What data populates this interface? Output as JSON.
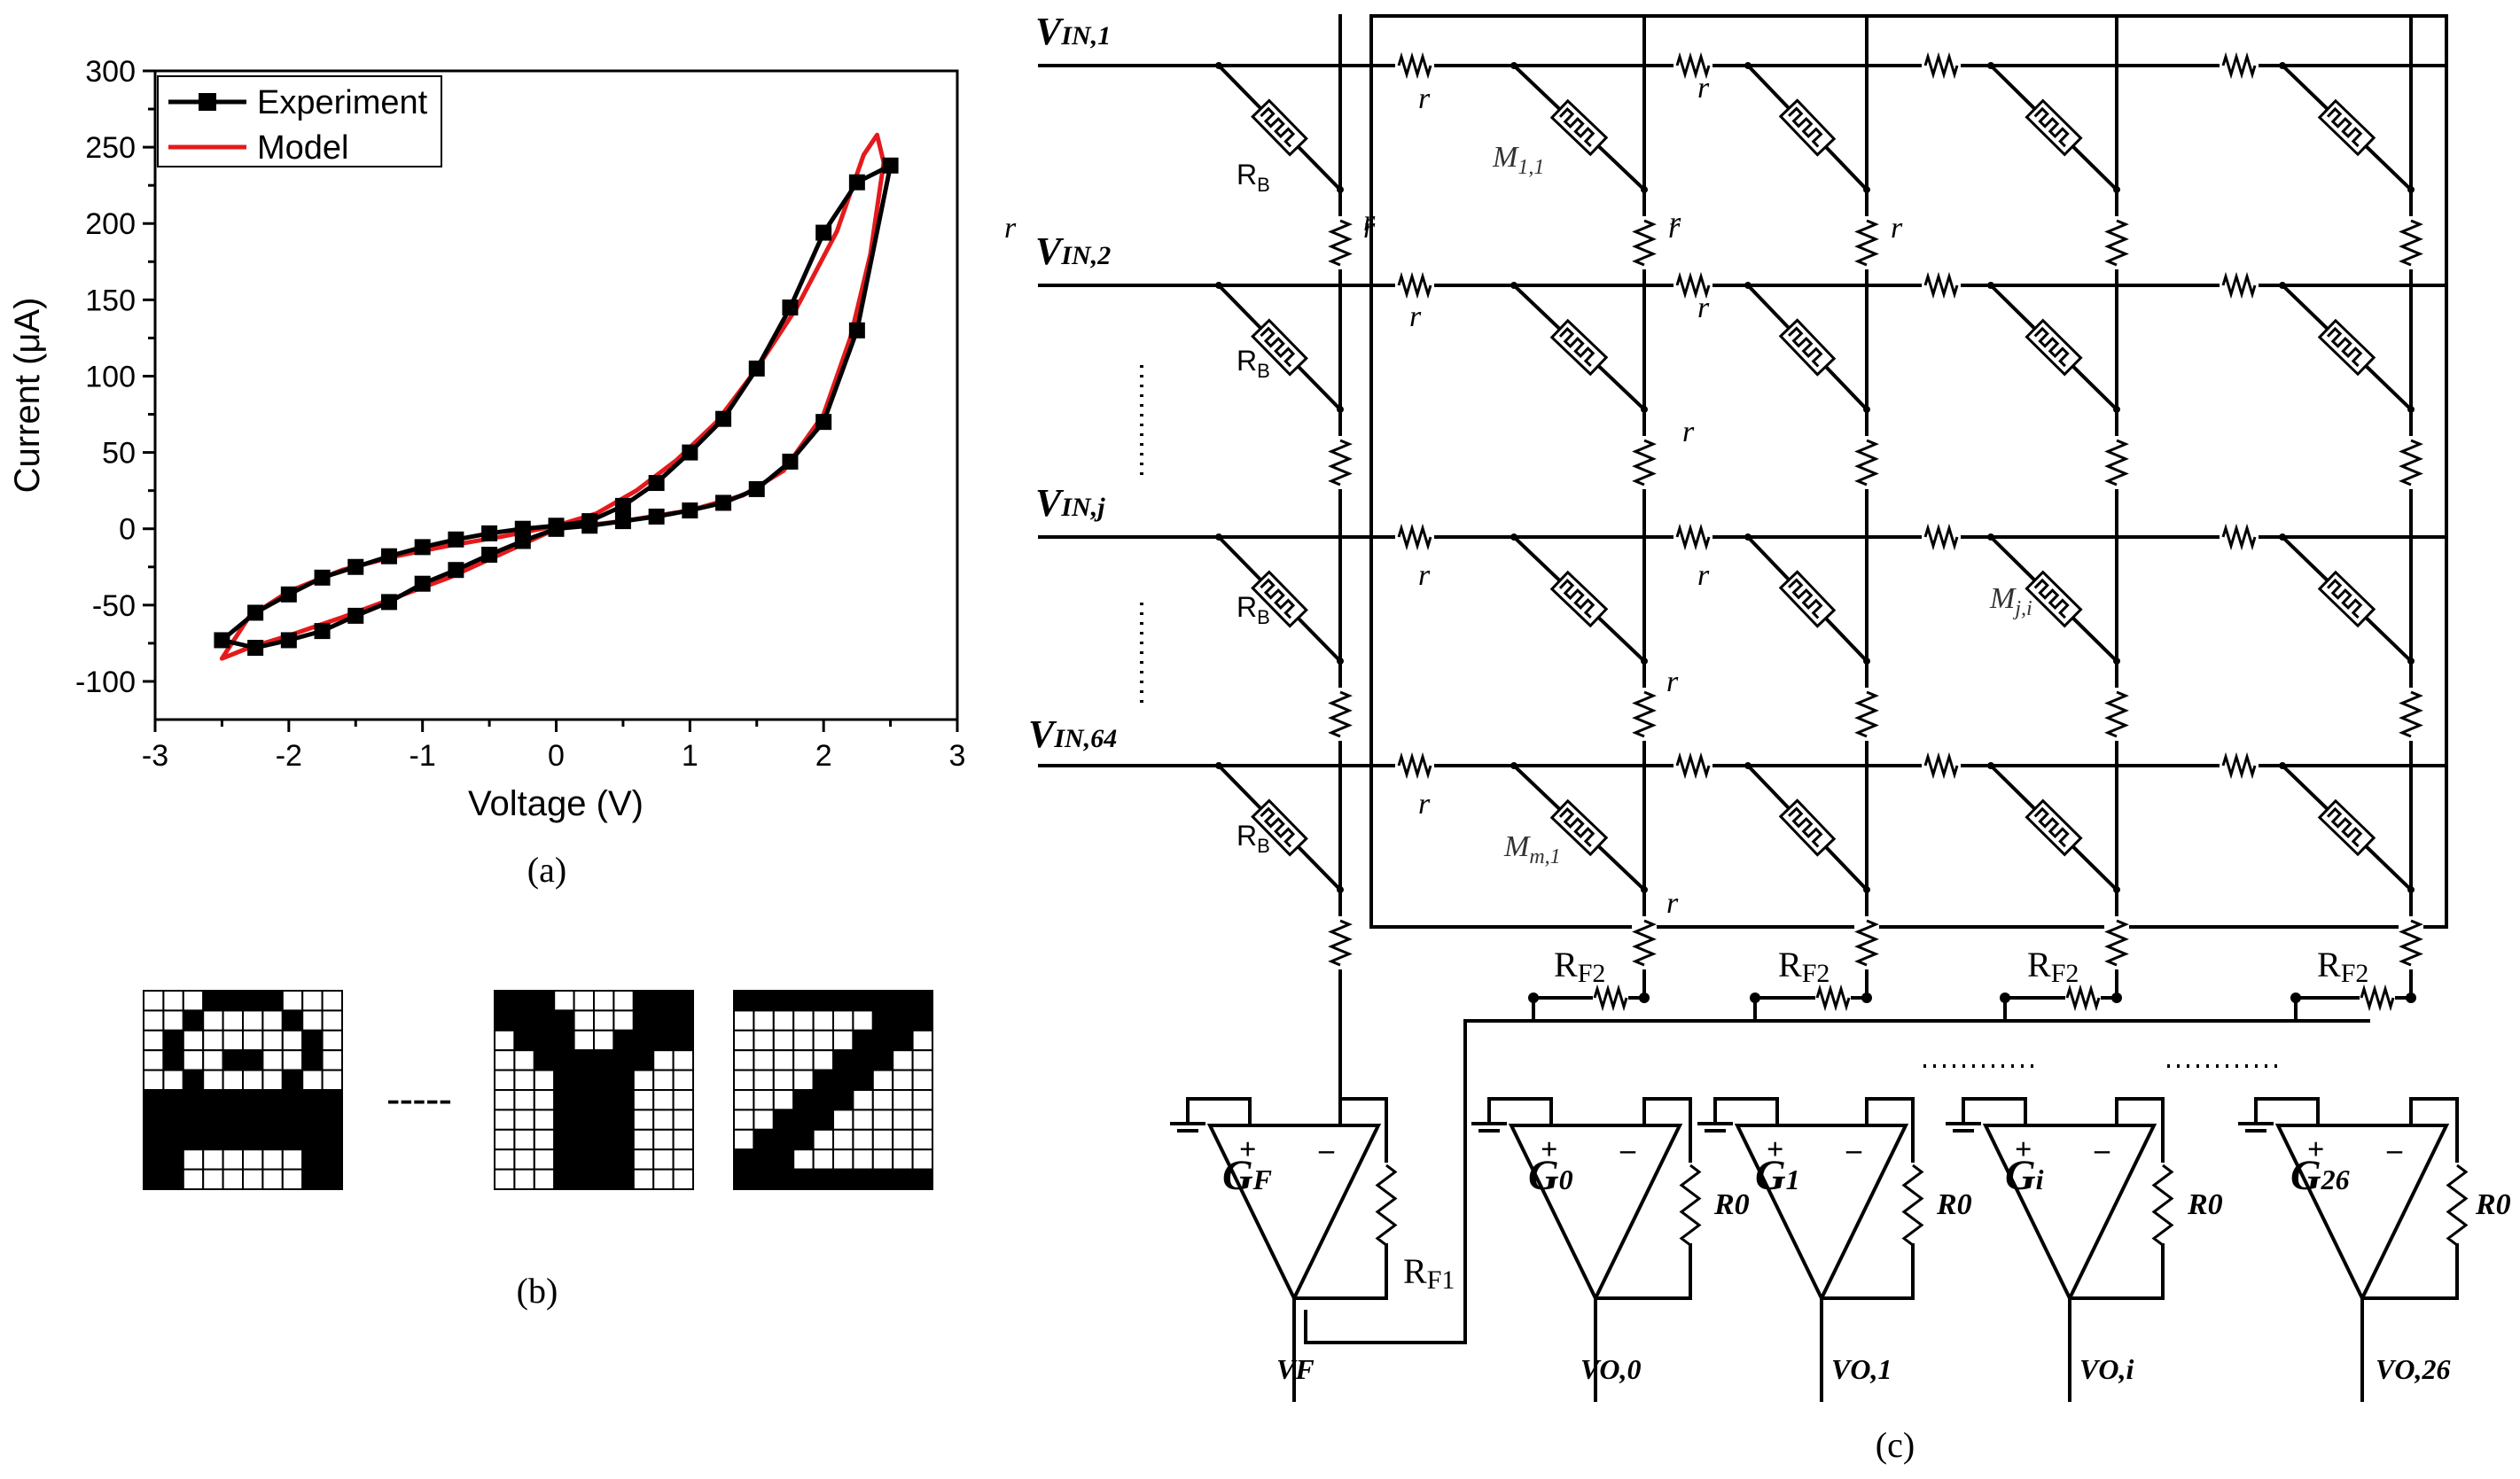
{
  "panel_a": {
    "caption": "(a)",
    "chart_data": {
      "type": "line",
      "xlabel": "Voltage (V)",
      "ylabel": "Current (μA)",
      "xlim": [
        -3,
        3
      ],
      "ylim": [
        -125,
        300
      ],
      "xticks": [
        -3,
        -2,
        -1,
        0,
        1,
        2,
        3
      ],
      "yticks": [
        -100,
        -50,
        0,
        50,
        100,
        150,
        200,
        250,
        300
      ],
      "grid": false,
      "legend_position": "top-left",
      "series": [
        {
          "name": "Experiment",
          "color": "#000000",
          "marker": "square",
          "points": [
            [
              0,
              0
            ],
            [
              0.25,
              2
            ],
            [
              0.5,
              5
            ],
            [
              0.75,
              8
            ],
            [
              1.0,
              12
            ],
            [
              1.25,
              17
            ],
            [
              1.5,
              26
            ],
            [
              1.75,
              44
            ],
            [
              2.0,
              70
            ],
            [
              2.25,
              130
            ],
            [
              2.5,
              238
            ],
            [
              2.25,
              227
            ],
            [
              2.0,
              194
            ],
            [
              1.75,
              145
            ],
            [
              1.5,
              105
            ],
            [
              1.25,
              72
            ],
            [
              1.0,
              50
            ],
            [
              0.75,
              30
            ],
            [
              0.5,
              15
            ],
            [
              0.25,
              5
            ],
            [
              0,
              2
            ],
            [
              -0.25,
              0
            ],
            [
              -0.5,
              -3
            ],
            [
              -0.75,
              -7
            ],
            [
              -1.0,
              -12
            ],
            [
              -1.25,
              -18
            ],
            [
              -1.5,
              -25
            ],
            [
              -1.75,
              -32
            ],
            [
              -2.0,
              -43
            ],
            [
              -2.25,
              -55
            ],
            [
              -2.5,
              -73
            ],
            [
              -2.25,
              -78
            ],
            [
              -2.0,
              -73
            ],
            [
              -1.75,
              -67
            ],
            [
              -1.5,
              -57
            ],
            [
              -1.25,
              -48
            ],
            [
              -1.0,
              -36
            ],
            [
              -0.75,
              -27
            ],
            [
              -0.5,
              -17
            ],
            [
              -0.25,
              -8
            ],
            [
              0,
              0
            ]
          ]
        },
        {
          "name": "Model",
          "color": "#e41a1c",
          "marker": "none",
          "points": [
            [
              0,
              0
            ],
            [
              0.5,
              5
            ],
            [
              1.0,
              12
            ],
            [
              1.4,
              22
            ],
            [
              1.7,
              38
            ],
            [
              2.0,
              75
            ],
            [
              2.2,
              125
            ],
            [
              2.35,
              180
            ],
            [
              2.45,
              240
            ],
            [
              2.4,
              258
            ],
            [
              2.3,
              245
            ],
            [
              2.1,
              195
            ],
            [
              1.8,
              145
            ],
            [
              1.5,
              105
            ],
            [
              1.2,
              70
            ],
            [
              0.9,
              45
            ],
            [
              0.6,
              25
            ],
            [
              0.3,
              10
            ],
            [
              0,
              2
            ],
            [
              -0.4,
              -5
            ],
            [
              -0.8,
              -11
            ],
            [
              -1.2,
              -18
            ],
            [
              -1.6,
              -27
            ],
            [
              -2.0,
              -41
            ],
            [
              -2.3,
              -58
            ],
            [
              -2.5,
              -85
            ],
            [
              -2.3,
              -78
            ],
            [
              -2.0,
              -70
            ],
            [
              -1.6,
              -58
            ],
            [
              -1.2,
              -45
            ],
            [
              -0.8,
              -32
            ],
            [
              -0.4,
              -16
            ],
            [
              0,
              0
            ]
          ]
        }
      ]
    }
  },
  "panel_b": {
    "caption": "(b)",
    "separator": "-----",
    "pattern_colors": {
      "on": "#000000",
      "off": "#ffffff"
    },
    "letters": [
      {
        "cols": 10,
        "rows": 10,
        "pattern": [
          "0001111000",
          "0010000100",
          "0100000010",
          "0100110010",
          "0010000100",
          "1111111111",
          "1111111111",
          "1111111111",
          "1100000011",
          "1100000011"
        ]
      },
      {
        "cols": 10,
        "rows": 10,
        "pattern": [
          "1110000111",
          "1111000111",
          "0111001111",
          "0011111100",
          "0001111000",
          "0001111000",
          "0001111000",
          "0001111000",
          "0001111000",
          "0001111000"
        ]
      },
      {
        "cols": 10,
        "rows": 10,
        "pattern": [
          "1111111111",
          "0000000111",
          "0000001110",
          "0000011100",
          "0000111000",
          "0001110000",
          "0011100000",
          "0111000000",
          "1110000000",
          "1111111111"
        ]
      }
    ]
  },
  "panel_c": {
    "caption": "(c)",
    "inputs": [
      "V",
      "V",
      "V",
      "V"
    ],
    "input_subs": [
      "IN,1",
      "IN,2",
      "IN,j",
      "IN,64"
    ],
    "rb_label": "R",
    "rb_sub": "B",
    "r_label": "r",
    "m_labels": [
      "M",
      "M",
      "M"
    ],
    "m_subs": [
      "1,1",
      "j,i",
      "m,1"
    ],
    "rf2_label": "R",
    "rf2_sub": "F2",
    "rf1_label": "R",
    "rf1_sub": "F1",
    "r0_label": "R0",
    "opamp_labels": [
      "G",
      "G",
      "G",
      "G",
      "G"
    ],
    "opamp_subs": [
      "F",
      "0",
      "1",
      "i",
      "26"
    ],
    "outputs": [
      "VF",
      "VO,0",
      "VO,1",
      "VO,i",
      "VO,26"
    ],
    "plus": "+",
    "minus": "–"
  }
}
